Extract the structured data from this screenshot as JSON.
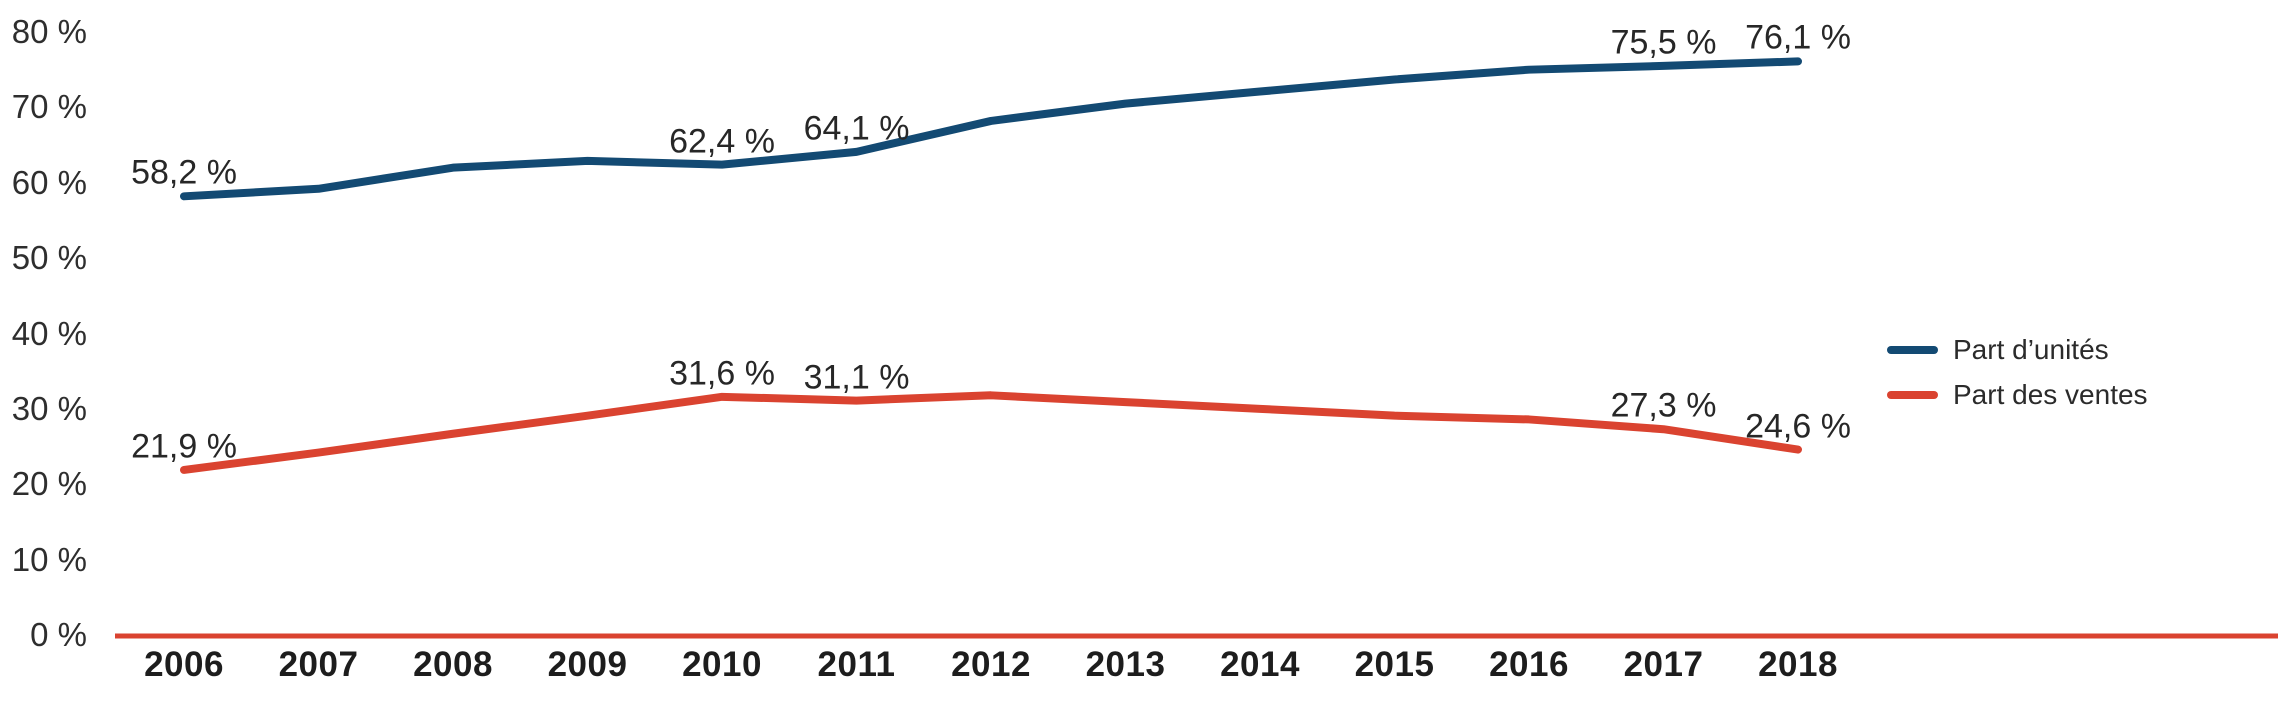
{
  "chart_data": {
    "type": "line",
    "x": [
      2006,
      2007,
      2008,
      2009,
      2010,
      2011,
      2012,
      2013,
      2014,
      2015,
      2016,
      2017,
      2018
    ],
    "y_axis": {
      "min": 0,
      "max": 80,
      "step": 10,
      "tick_labels": [
        "0 %",
        "10 %",
        "20 %",
        "30 %",
        "40 %",
        "50 %",
        "60 %",
        "70 %",
        "80 %"
      ]
    },
    "grid": false,
    "legend_position": "right",
    "axis_line_color": "#da4330",
    "series": [
      {
        "name": "Part d’unités",
        "color": "#134a73",
        "values": [
          58.2,
          59.2,
          62.0,
          62.9,
          62.4,
          64.1,
          68.2,
          70.5,
          72.1,
          73.7,
          75.0,
          75.5,
          76.1
        ],
        "labeled_points": [
          {
            "year": 2006,
            "label": "58,2 %"
          },
          {
            "year": 2010,
            "label": "62,4 %"
          },
          {
            "year": 2011,
            "label": "64,1 %"
          },
          {
            "year": 2017,
            "label": "75,5 %"
          },
          {
            "year": 2018,
            "label": "76,1 %"
          }
        ]
      },
      {
        "name": "Part des ventes",
        "color": "#da4330",
        "values": [
          21.9,
          24.2,
          26.7,
          29.1,
          31.6,
          31.1,
          31.8,
          30.9,
          30.0,
          29.1,
          28.6,
          27.3,
          24.6
        ],
        "labeled_points": [
          {
            "year": 2006,
            "label": "21,9 %"
          },
          {
            "year": 2010,
            "label": "31,6 %"
          },
          {
            "year": 2011,
            "label": "31,1 %"
          },
          {
            "year": 2017,
            "label": "27,3 %"
          },
          {
            "year": 2018,
            "label": "24,6 %"
          }
        ]
      }
    ]
  }
}
